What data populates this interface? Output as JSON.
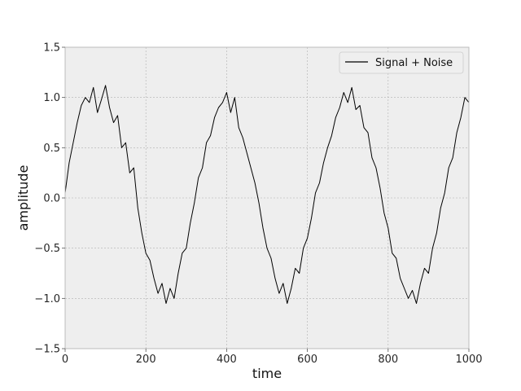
{
  "chart_data": {
    "type": "line",
    "title": "",
    "xlabel": "time",
    "ylabel": "amplitude",
    "xlim": [
      0,
      1000
    ],
    "ylim": [
      -1.5,
      1.5
    ],
    "xticks": [
      0,
      200,
      400,
      600,
      800,
      1000
    ],
    "xtick_labels": [
      "0",
      "200",
      "400",
      "600",
      "800",
      "1000"
    ],
    "yticks": [
      -1.5,
      -1.0,
      -0.5,
      0.0,
      0.5,
      1.0,
      1.5
    ],
    "ytick_labels": [
      "−1.5",
      "−1.0",
      "−0.5",
      "0.0",
      "0.5",
      "1.0",
      "1.5"
    ],
    "grid": true,
    "legend_position": "top-right",
    "colors": {
      "background": "#eeeeee",
      "grid": "#b0b0b0",
      "line": "#000000",
      "spine": "#bcbcbc"
    },
    "series": [
      {
        "name": "Signal + Noise",
        "x": [
          0,
          10,
          20,
          30,
          40,
          50,
          60,
          70,
          80,
          90,
          100,
          110,
          120,
          130,
          140,
          150,
          160,
          170,
          180,
          190,
          200,
          210,
          220,
          230,
          240,
          250,
          260,
          270,
          280,
          290,
          300,
          310,
          320,
          330,
          340,
          350,
          360,
          370,
          380,
          390,
          400,
          410,
          420,
          430,
          440,
          450,
          460,
          470,
          480,
          490,
          500,
          510,
          520,
          530,
          540,
          550,
          560,
          570,
          580,
          590,
          600,
          610,
          620,
          630,
          640,
          650,
          660,
          670,
          680,
          690,
          700,
          710,
          720,
          730,
          740,
          750,
          760,
          770,
          780,
          790,
          800,
          810,
          820,
          830,
          840,
          850,
          860,
          870,
          880,
          890,
          900,
          910,
          920,
          930,
          940,
          950,
          960,
          970,
          980,
          990,
          1000
        ],
        "y": [
          0.05,
          0.35,
          0.55,
          0.75,
          0.92,
          1.0,
          0.95,
          1.1,
          0.85,
          0.98,
          1.12,
          0.9,
          0.75,
          0.82,
          0.5,
          0.55,
          0.25,
          0.3,
          -0.1,
          -0.35,
          -0.55,
          -0.62,
          -0.8,
          -0.95,
          -0.85,
          -1.05,
          -0.9,
          -1.0,
          -0.75,
          -0.55,
          -0.5,
          -0.25,
          -0.05,
          0.2,
          0.3,
          0.55,
          0.62,
          0.8,
          0.9,
          0.95,
          1.05,
          0.85,
          1.0,
          0.7,
          0.6,
          0.45,
          0.3,
          0.15,
          -0.05,
          -0.3,
          -0.5,
          -0.6,
          -0.8,
          -0.95,
          -0.85,
          -1.05,
          -0.9,
          -0.7,
          -0.75,
          -0.5,
          -0.4,
          -0.2,
          0.05,
          0.15,
          0.35,
          0.5,
          0.62,
          0.8,
          0.9,
          1.05,
          0.95,
          1.1,
          0.88,
          0.92,
          0.7,
          0.65,
          0.4,
          0.3,
          0.1,
          -0.15,
          -0.3,
          -0.55,
          -0.6,
          -0.8,
          -0.9,
          -1.0,
          -0.92,
          -1.05,
          -0.85,
          -0.7,
          -0.75,
          -0.5,
          -0.35,
          -0.1,
          0.05,
          0.3,
          0.4,
          0.65,
          0.8,
          1.0,
          0.95
        ],
        "color": "#000000"
      }
    ]
  }
}
